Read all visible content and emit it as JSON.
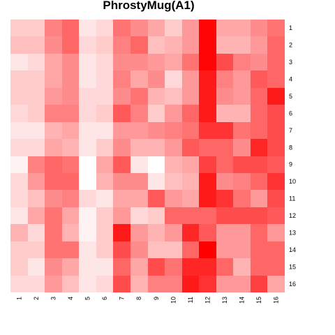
{
  "chart_data": {
    "type": "heatmap",
    "title": "PhrostyMug(A1)",
    "xlabel": "",
    "ylabel": "",
    "x_categories": [
      "1",
      "2",
      "3",
      "4",
      "5",
      "6",
      "7",
      "8",
      "9",
      "10",
      "11",
      "12",
      "13",
      "14",
      "15",
      "16"
    ],
    "y_categories": [
      "1",
      "2",
      "3",
      "4",
      "5",
      "6",
      "7",
      "8",
      "9",
      "10",
      "11",
      "12",
      "13",
      "14",
      "15",
      "16"
    ],
    "value_range": [
      0,
      1
    ],
    "color_low": "#ffffff",
    "color_high": "#ff0000",
    "grid": false,
    "legend": "none",
    "values": [
      [
        0.2,
        0.2,
        0.5,
        0.6,
        0.1,
        0.15,
        0.55,
        0.45,
        0.35,
        0.2,
        0.4,
        0.98,
        0.35,
        0.35,
        0.45,
        0.55
      ],
      [
        0.25,
        0.25,
        0.45,
        0.6,
        0.15,
        0.2,
        0.5,
        0.6,
        0.25,
        0.3,
        0.4,
        0.98,
        0.3,
        0.3,
        0.4,
        0.6
      ],
      [
        0.1,
        0.15,
        0.35,
        0.45,
        0.1,
        0.15,
        0.45,
        0.45,
        0.4,
        0.35,
        0.55,
        0.98,
        0.7,
        0.5,
        0.45,
        0.6
      ],
      [
        0.2,
        0.2,
        0.35,
        0.45,
        0.1,
        0.15,
        0.5,
        0.35,
        0.45,
        0.15,
        0.4,
        0.9,
        0.5,
        0.4,
        0.65,
        0.6
      ],
      [
        0.2,
        0.2,
        0.4,
        0.45,
        0.15,
        0.15,
        0.45,
        0.55,
        0.3,
        0.25,
        0.4,
        0.9,
        0.45,
        0.4,
        0.6,
        0.9
      ],
      [
        0.15,
        0.2,
        0.5,
        0.5,
        0.15,
        0.2,
        0.65,
        0.5,
        0.2,
        0.4,
        0.6,
        0.9,
        0.3,
        0.3,
        0.6,
        0.7
      ],
      [
        0.1,
        0.1,
        0.3,
        0.35,
        0.1,
        0.1,
        0.4,
        0.4,
        0.45,
        0.5,
        0.55,
        0.8,
        0.8,
        0.55,
        0.6,
        0.7
      ],
      [
        0.15,
        0.15,
        0.35,
        0.3,
        0.1,
        0.2,
        0.45,
        0.3,
        0.3,
        0.4,
        0.65,
        0.6,
        0.6,
        0.45,
        0.85,
        0.7
      ],
      [
        0.05,
        0.5,
        0.6,
        0.55,
        0.0,
        0.35,
        0.65,
        0.1,
        0.0,
        0.3,
        0.35,
        0.75,
        0.6,
        0.7,
        0.7,
        0.65
      ],
      [
        0.15,
        0.4,
        0.6,
        0.6,
        0.0,
        0.3,
        0.45,
        0.45,
        0.1,
        0.25,
        0.3,
        0.9,
        0.45,
        0.5,
        0.6,
        0.8
      ],
      [
        0.15,
        0.25,
        0.45,
        0.5,
        0.15,
        0.1,
        0.35,
        0.35,
        0.65,
        0.4,
        0.35,
        0.9,
        0.8,
        0.55,
        0.4,
        0.7
      ],
      [
        0.1,
        0.35,
        0.55,
        0.35,
        0.05,
        0.2,
        0.4,
        0.15,
        0.2,
        0.6,
        0.6,
        0.6,
        0.7,
        0.7,
        0.7,
        0.65
      ],
      [
        0.3,
        0.15,
        0.55,
        0.3,
        0.05,
        0.2,
        0.9,
        0.4,
        0.3,
        0.4,
        0.85,
        0.65,
        0.4,
        0.4,
        0.6,
        0.4
      ],
      [
        0.2,
        0.2,
        0.55,
        0.55,
        0.1,
        0.2,
        0.7,
        0.45,
        0.25,
        0.25,
        0.6,
        1.0,
        0.4,
        0.4,
        0.6,
        0.6
      ],
      [
        0.2,
        0.1,
        0.45,
        0.35,
        0.1,
        0.1,
        0.6,
        0.35,
        0.7,
        0.55,
        0.85,
        0.85,
        0.6,
        0.3,
        0.6,
        0.6
      ],
      [
        0.15,
        0.15,
        0.4,
        0.25,
        0.1,
        0.15,
        0.7,
        0.3,
        0.5,
        0.5,
        0.9,
        0.8,
        0.4,
        0.4,
        0.75,
        0.35
      ]
    ]
  }
}
